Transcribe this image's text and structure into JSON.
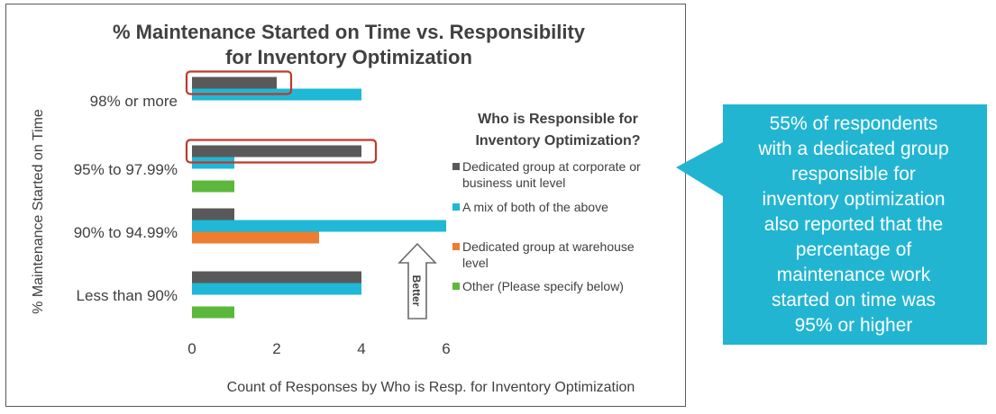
{
  "chart_data": {
    "type": "bar",
    "orientation": "horizontal",
    "title": "% Maintenance Started on Time vs. Responsibility for Inventory Optimization",
    "title_lines": [
      "% Maintenance Started on Time vs. Responsibility",
      "for Inventory Optimization"
    ],
    "ylabel": "% Maintenance Started on Time",
    "xlabel": "Count of Responses by Who is Resp. for Inventory Optimization",
    "categories": [
      "98% or more",
      "95% to 97.99%",
      "90% to 94.99%",
      "Less than 90%"
    ],
    "xlim": [
      0,
      6
    ],
    "xticks": [
      "0",
      "2",
      "4",
      "6"
    ],
    "series": [
      {
        "name": "Dedicated group at corporate or business unit level",
        "legend_lines": [
          "Dedicated group at corporate or",
          "business unit level"
        ],
        "color": "#595959",
        "values": [
          2,
          4,
          1,
          4
        ]
      },
      {
        "name": "A mix of both of the above",
        "legend_lines": [
          "A mix of both of the above"
        ],
        "color": "#1fb8d6",
        "values": [
          4,
          1,
          6,
          4
        ]
      },
      {
        "name": "Dedicated group at warehouse level",
        "legend_lines": [
          "Dedicated group at warehouse",
          "level"
        ],
        "color": "#ed7d31",
        "values": [
          0,
          0,
          3,
          0
        ]
      },
      {
        "name": "Other (Please specify below)",
        "legend_lines": [
          "Other (Please specify below)"
        ],
        "color": "#5cb83c",
        "values": [
          0,
          1,
          0,
          1
        ]
      }
    ],
    "legend_title_lines": [
      "Who is Responsible for",
      "Inventory Optimization?"
    ],
    "legend_position": "right",
    "grid": false,
    "highlight_color": "#c0392b",
    "highlighted": [
      "98% or more / Dedicated group at corporate or business unit level",
      "95% to 97.99% / Dedicated group at corporate or business unit level"
    ],
    "annotation": "Better"
  },
  "callout": {
    "color": "#22b5d2",
    "lines": [
      "55% of respondents",
      "with a dedicated group",
      "responsible for",
      "inventory optimization",
      "also reported that the",
      "percentage of",
      "maintenance work",
      "started on time was",
      "95% or higher"
    ]
  }
}
